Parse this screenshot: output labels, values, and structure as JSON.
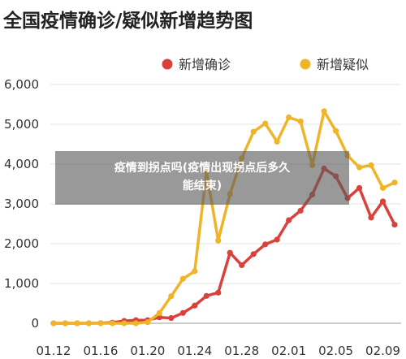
{
  "chart_data": {
    "type": "line",
    "title": "全国疫情确诊/疑似新增趋势图",
    "xlabel": "",
    "ylabel": "",
    "ylim": [
      0,
      6000
    ],
    "yticks": [
      "0",
      "1,000",
      "2,000",
      "3,000",
      "4,000",
      "5,000",
      "6,000"
    ],
    "ytick_values": [
      0,
      1000,
      2000,
      3000,
      4000,
      5000,
      6000
    ],
    "x_dates": [
      "01.12",
      "01.13",
      "01.14",
      "01.15",
      "01.16",
      "01.17",
      "01.18",
      "01.19",
      "01.20",
      "01.21",
      "01.22",
      "01.23",
      "01.24",
      "01.25",
      "01.26",
      "01.27",
      "01.28",
      "01.29",
      "01.30",
      "01.31",
      "02.01",
      "02.02",
      "02.03",
      "02.04",
      "02.05",
      "02.06",
      "02.07",
      "02.08",
      "02.09",
      "02.10"
    ],
    "xtick_labels": [
      "01.12",
      "01.16",
      "01.20",
      "01.24",
      "01.28",
      "02.01",
      "02.05",
      "02.09"
    ],
    "grid": true,
    "legend_position": "top-right",
    "series": [
      {
        "name": "新增确诊",
        "color": "#d9423c",
        "values": [
          0,
          0,
          0,
          0,
          4,
          17,
          59,
          77,
          77,
          149,
          131,
          259,
          444,
          688,
          769,
          1771,
          1459,
          1737,
          1982,
          2102,
          2590,
          2829,
          3235,
          3887,
          3694,
          3143,
          3399,
          2656,
          3062,
          2478
        ]
      },
      {
        "name": "新增疑似",
        "color": "#f0b429",
        "values": [
          0,
          0,
          0,
          0,
          0,
          0,
          0,
          0,
          27,
          257,
          680,
          1118,
          1309,
          3806,
          2077,
          3248,
          4148,
          4812,
          5019,
          4562,
          5173,
          5072,
          3971,
          5328,
          4833,
          4214,
          3916,
          3970,
          3399,
          3536
        ]
      }
    ]
  },
  "overlay": {
    "line1": "疫情到拐点吗(疫情出现拐点后多久",
    "line2": "能结束)"
  }
}
